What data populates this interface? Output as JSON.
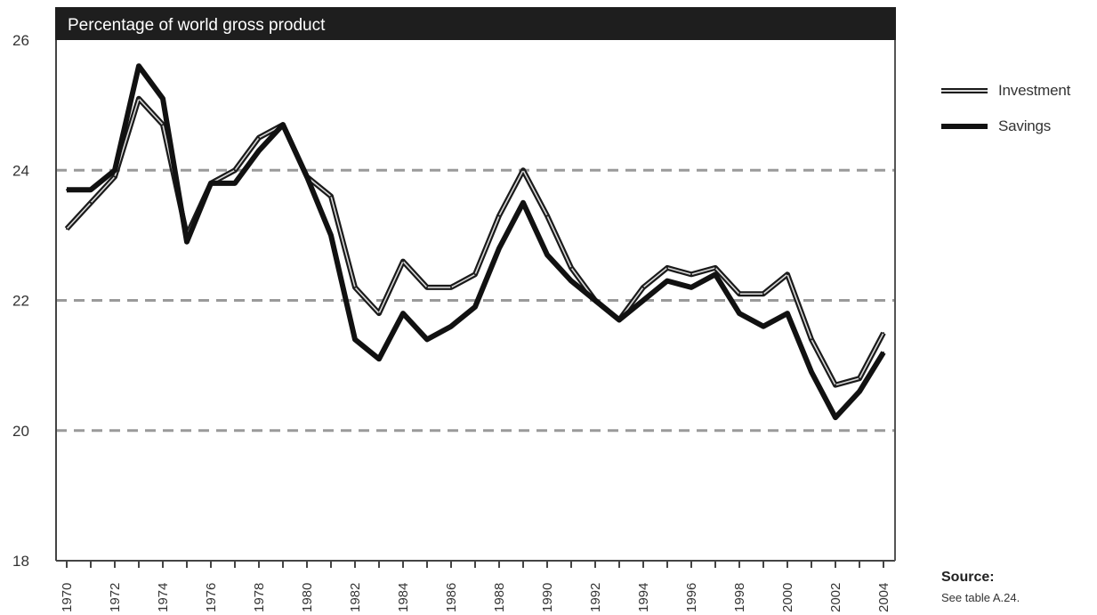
{
  "chart_data": {
    "type": "line",
    "title": "Percentage of world gross product",
    "x": [
      1970,
      1971,
      1972,
      1973,
      1974,
      1975,
      1976,
      1977,
      1978,
      1979,
      1980,
      1981,
      1982,
      1983,
      1984,
      1985,
      1986,
      1987,
      1988,
      1989,
      1990,
      1991,
      1992,
      1993,
      1994,
      1995,
      1996,
      1997,
      1998,
      1999,
      2000,
      2001,
      2002,
      2003,
      2004
    ],
    "x_tick_labels": [
      "1970",
      "1972",
      "1974",
      "1976",
      "1978",
      "1980",
      "1982",
      "1984",
      "1986",
      "1988",
      "1990",
      "1992",
      "1994",
      "1996",
      "1998",
      "2000",
      "2002",
      "2004"
    ],
    "y_tick_labels": [
      "18",
      "20",
      "22",
      "24",
      "26"
    ],
    "ylim": [
      18,
      26
    ],
    "grid_y": [
      20,
      22,
      24
    ],
    "series": [
      {
        "name": "Investment",
        "color": "#1a1a1a",
        "style": "double",
        "values": [
          23.1,
          23.5,
          23.9,
          25.1,
          24.7,
          23.0,
          23.8,
          24.0,
          24.5,
          24.7,
          23.9,
          23.6,
          22.2,
          21.8,
          22.6,
          22.2,
          22.2,
          22.4,
          23.3,
          24.0,
          23.3,
          22.5,
          22.0,
          21.7,
          22.2,
          22.5,
          22.4,
          22.5,
          22.1,
          22.1,
          22.4,
          21.4,
          20.7,
          20.8,
          21.5
        ]
      },
      {
        "name": "Savings",
        "color": "#111111",
        "style": "solid",
        "values": [
          23.7,
          23.7,
          24.0,
          25.6,
          25.1,
          22.9,
          23.8,
          23.8,
          24.3,
          24.7,
          23.9,
          23.0,
          21.4,
          21.1,
          21.8,
          21.4,
          21.6,
          21.9,
          22.8,
          23.5,
          22.7,
          22.3,
          22.0,
          21.7,
          22.0,
          22.3,
          22.2,
          22.4,
          21.8,
          21.6,
          21.8,
          20.9,
          20.2,
          20.6,
          21.2
        ]
      }
    ],
    "legend": {
      "placement": "right",
      "items": [
        "Investment",
        "Savings"
      ]
    },
    "source": {
      "title": "Source:",
      "text": "See table A.24."
    }
  }
}
